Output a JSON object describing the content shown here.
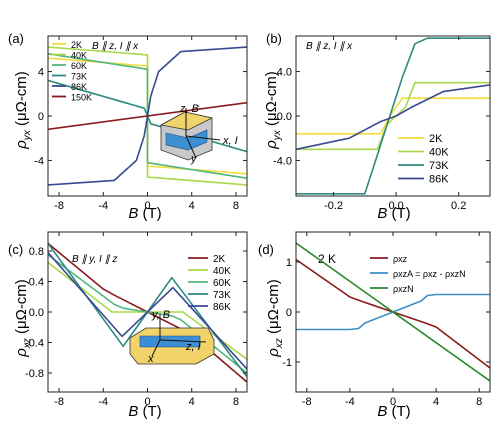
{
  "chart_data": [
    {
      "panel": "(a)",
      "type": "line",
      "annotation": "B ∥ z, I ∥ x",
      "xlabel": "B (T)",
      "ylabel": "ρyx (μΩ-cm)",
      "xlim": [
        -9,
        9
      ],
      "ylim": [
        -7.2,
        7.2
      ],
      "xticks": [
        -8,
        -4,
        0,
        4,
        8
      ],
      "yticks": [
        -4,
        0,
        4
      ],
      "inset_labels": [
        "z, B",
        "x, I",
        "y"
      ],
      "legend": "top-left",
      "series": [
        {
          "name": "2K",
          "color": "#f2dc3a",
          "x": [
            -9,
            0,
            0,
            9
          ],
          "y": [
            5.2,
            4.5,
            -4.5,
            -5.2
          ]
        },
        {
          "name": "40K",
          "color": "#a9d84a",
          "x": [
            -9,
            0,
            0,
            9
          ],
          "y": [
            6.2,
            5.5,
            -5.5,
            -6.2
          ]
        },
        {
          "name": "60K",
          "color": "#52b77e",
          "x": [
            -9,
            0,
            0,
            9
          ],
          "y": [
            5.6,
            4.2,
            -4.2,
            -5.6
          ]
        },
        {
          "name": "73K",
          "color": "#2e8a80",
          "x": [
            -9,
            -0.3,
            0,
            0.3,
            9
          ],
          "y": [
            3.2,
            0.7,
            0,
            -0.7,
            -3.2
          ]
        },
        {
          "name": "86K",
          "color": "#3a4a92",
          "x": [
            -9,
            -3,
            -1,
            -0.3,
            0,
            0.3,
            1,
            3,
            9
          ],
          "y": [
            -6.2,
            -5.8,
            -4.0,
            -1.8,
            0,
            1.8,
            4.0,
            5.8,
            6.2
          ]
        },
        {
          "name": "150K",
          "color": "#8b1a1a",
          "x": [
            -9,
            9
          ],
          "y": [
            -1.2,
            1.2
          ]
        }
      ]
    },
    {
      "panel": "(b)",
      "type": "line",
      "annotation": "B ∥ z, I ∥ x",
      "xlabel": "B (T)",
      "ylabel": "ρyx (μΩ-cm)",
      "xlim": [
        -0.32,
        0.3
      ],
      "ylim": [
        -7.2,
        7.2
      ],
      "xticks": [
        -0.2,
        0.0,
        0.2
      ],
      "yticks": [
        -4,
        0,
        4
      ],
      "legend": "right",
      "series": [
        {
          "name": "2K",
          "color": "#f2dc3a",
          "x": [
            -0.32,
            -0.05,
            -0.02,
            0.02,
            0.05,
            0.3
          ],
          "y": [
            -1.6,
            -1.6,
            0,
            1.6,
            1.6,
            1.6
          ]
        },
        {
          "name": "40K",
          "color": "#a9d84a",
          "x": [
            -0.32,
            -0.06,
            -0.03,
            0.03,
            0.06,
            0.3
          ],
          "y": [
            -3.0,
            -3.0,
            -0.8,
            0.8,
            3.0,
            3.0
          ]
        },
        {
          "name": "73K",
          "color": "#2e8a80",
          "x": [
            -0.32,
            -0.1,
            -0.06,
            -0.02,
            0.02,
            0.06,
            0.1,
            0.3
          ],
          "y": [
            -7.0,
            -7.0,
            -3.5,
            0,
            3.5,
            6.5,
            7.0,
            7.0
          ]
        },
        {
          "name": "86K",
          "color": "#3a4a92",
          "x": [
            -0.32,
            -0.15,
            -0.05,
            0,
            0.05,
            0.15,
            0.3
          ],
          "y": [
            -3.0,
            -2.0,
            -0.5,
            0,
            0.8,
            2.2,
            2.8
          ]
        }
      ]
    },
    {
      "panel": "(c)",
      "type": "line",
      "annotation": "B ∥ y, I ∥ z",
      "xlabel": "B (T)",
      "ylabel": "ρxz (μΩ-cm)",
      "xlim": [
        -9,
        9
      ],
      "ylim": [
        -1.05,
        1.05
      ],
      "xticks": [
        -8,
        -4,
        0,
        4,
        8
      ],
      "yticks": [
        -0.8,
        -0.4,
        0.0,
        0.4,
        0.8
      ],
      "inset_labels": [
        "y, B",
        "z, I",
        "x"
      ],
      "legend": "top-right",
      "series": [
        {
          "name": "2K",
          "color": "#8b1a1a",
          "x": [
            -9,
            -4,
            -3,
            0,
            3,
            4,
            9
          ],
          "y": [
            0.9,
            0.3,
            0.22,
            0.0,
            -0.22,
            -0.3,
            -0.92
          ]
        },
        {
          "name": "40K",
          "color": "#a9d84a",
          "x": [
            -9,
            -3.2,
            -2.6,
            2.6,
            3.2,
            9
          ],
          "y": [
            0.65,
            0.0,
            0.0,
            0.0,
            0.0,
            -0.62
          ]
        },
        {
          "name": "60K",
          "color": "#52b77e",
          "x": [
            -9,
            -3.0,
            -2.2,
            2.2,
            3.0,
            9
          ],
          "y": [
            0.75,
            0.1,
            0.05,
            -0.05,
            -0.1,
            -0.8
          ]
        },
        {
          "name": "73K",
          "color": "#2e8a80",
          "x": [
            -9,
            -2.2,
            0,
            2.2,
            9
          ],
          "y": [
            0.9,
            -0.45,
            0.0,
            0.45,
            -0.85
          ]
        },
        {
          "name": "86K",
          "color": "#3a4a92",
          "x": [
            -9,
            -2.3,
            0,
            2.3,
            9
          ],
          "y": [
            0.78,
            -0.32,
            0.0,
            0.32,
            -0.75
          ]
        }
      ]
    },
    {
      "panel": "(d)",
      "type": "line",
      "annotation": "2 K",
      "xlabel": "B (T)",
      "ylabel": "ρxz (μΩ-cm)",
      "xlim": [
        -9,
        9
      ],
      "ylim": [
        -1.6,
        1.6
      ],
      "xticks": [
        -8,
        -4,
        0,
        4,
        8
      ],
      "yticks": [
        -1,
        0,
        1
      ],
      "legend": "top-right",
      "series": [
        {
          "name": "ρxz",
          "color": "#8b1a1a",
          "x": [
            -9,
            -4,
            -3,
            0,
            3,
            4,
            9
          ],
          "y": [
            1.05,
            0.3,
            0.22,
            0.0,
            -0.22,
            -0.3,
            -1.12
          ]
        },
        {
          "name": "ρxzA = ρxz - ρxzN",
          "color": "#3b8fc4",
          "x": [
            -9,
            -4,
            -3.2,
            -2.6,
            0,
            2.6,
            3.2,
            4,
            9
          ],
          "y": [
            -0.35,
            -0.35,
            -0.33,
            -0.22,
            0.0,
            0.22,
            0.33,
            0.35,
            0.35
          ]
        },
        {
          "name": "ρxzN",
          "color": "#2a8a2a",
          "x": [
            -9,
            9
          ],
          "y": [
            1.38,
            -1.38
          ]
        }
      ]
    }
  ]
}
